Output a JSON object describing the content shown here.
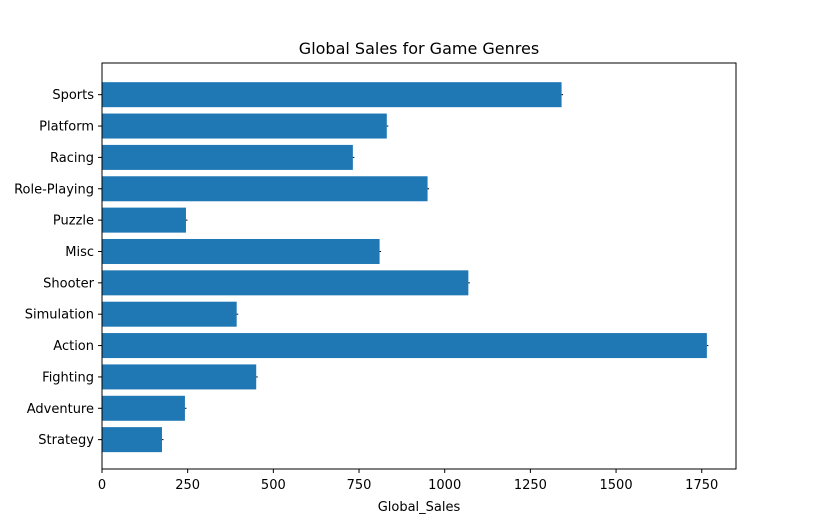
{
  "chart_data": {
    "type": "bar",
    "orientation": "horizontal",
    "title": "Global Sales for Game Genres",
    "xlabel": "Global_Sales",
    "ylabel": "",
    "categories": [
      "Sports",
      "Platform",
      "Racing",
      "Role-Playing",
      "Puzzle",
      "Misc",
      "Shooter",
      "Simulation",
      "Action",
      "Fighting",
      "Adventure",
      "Strategy"
    ],
    "values": [
      1341,
      831,
      732,
      950,
      245,
      810,
      1069,
      393,
      1765,
      450,
      242,
      175
    ],
    "xlim": [
      0,
      1850
    ],
    "xticks": [
      0,
      250,
      500,
      750,
      1000,
      1250,
      1500,
      1750
    ],
    "grid": false,
    "bar_color": "#1f77b4",
    "error_bar_color": "#000000"
  }
}
